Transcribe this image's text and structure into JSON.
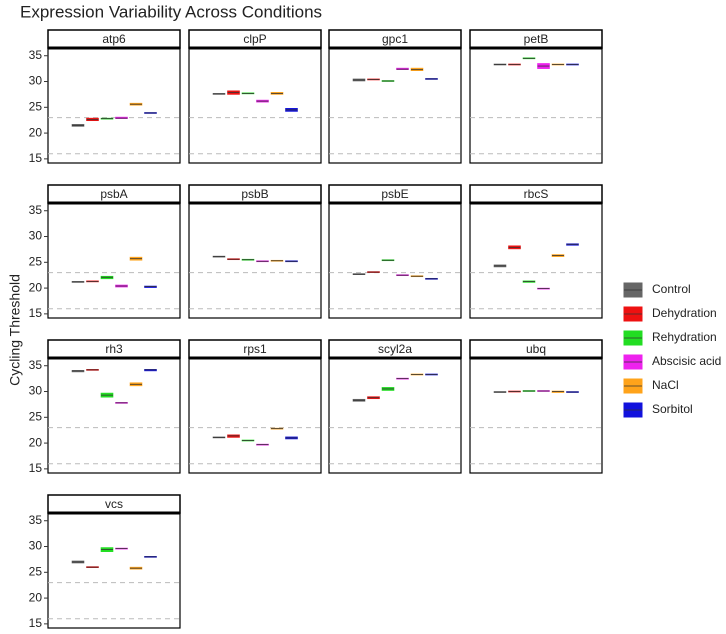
{
  "chart_data": {
    "type": "box",
    "title": "Expression Variability Across Conditions",
    "y_label": "Cycling Threshold",
    "ylim": [
      14.2,
      36.5
    ],
    "yticks": [
      15,
      20,
      25,
      30,
      35
    ],
    "hlines": [
      23,
      16
    ],
    "series": [
      {
        "name": "Control",
        "color": "#666666"
      },
      {
        "name": "Dehydration",
        "color": "#ee1111"
      },
      {
        "name": "Rehydration",
        "color": "#22dd22"
      },
      {
        "name": "Abscisic acid",
        "color": "#ee22ee"
      },
      {
        "name": "NaCl",
        "color": "#ffa31a"
      },
      {
        "name": "Sorbitol",
        "color": "#1111dd"
      }
    ],
    "facets": [
      {
        "name": "atp6",
        "boxes": [
          [
            21.3,
            21.5,
            21.7
          ],
          [
            22.4,
            22.6,
            22.9
          ],
          [
            22.7,
            22.8,
            22.9
          ],
          [
            22.8,
            22.9,
            23.1
          ],
          [
            25.4,
            25.6,
            25.8
          ],
          [
            23.8,
            23.9,
            24.0
          ]
        ]
      },
      {
        "name": "clpP",
        "boxes": [
          [
            27.5,
            27.6,
            27.7
          ],
          [
            27.5,
            27.9,
            28.2
          ],
          [
            27.6,
            27.7,
            27.8
          ],
          [
            26.0,
            26.2,
            26.4
          ],
          [
            27.5,
            27.7,
            27.9
          ],
          [
            24.2,
            24.5,
            24.8
          ]
        ]
      },
      {
        "name": "gpc1",
        "boxes": [
          [
            30.1,
            30.3,
            30.5
          ],
          [
            30.3,
            30.4,
            30.5
          ],
          [
            30.0,
            30.1,
            30.2
          ],
          [
            32.3,
            32.4,
            32.6
          ],
          [
            32.1,
            32.3,
            32.6
          ],
          [
            30.4,
            30.5,
            30.6
          ]
        ]
      },
      {
        "name": "petB",
        "boxes": [
          [
            33.2,
            33.3,
            33.4
          ],
          [
            33.2,
            33.3,
            33.4
          ],
          [
            34.4,
            34.5,
            34.6
          ],
          [
            32.5,
            33.0,
            33.5
          ],
          [
            33.2,
            33.3,
            33.4
          ],
          [
            33.2,
            33.3,
            33.4
          ]
        ]
      },
      {
        "name": "psbA",
        "boxes": [
          [
            21.1,
            21.2,
            21.3
          ],
          [
            21.2,
            21.3,
            21.4
          ],
          [
            21.8,
            22.1,
            22.3
          ],
          [
            20.2,
            20.4,
            20.6
          ],
          [
            25.4,
            25.7,
            26.0
          ],
          [
            20.1,
            20.3,
            20.4
          ]
        ]
      },
      {
        "name": "psbB",
        "boxes": [
          [
            26.0,
            26.1,
            26.2
          ],
          [
            25.5,
            25.6,
            25.7
          ],
          [
            25.4,
            25.5,
            25.6
          ],
          [
            25.1,
            25.2,
            25.3
          ],
          [
            25.2,
            25.3,
            25.4
          ],
          [
            25.1,
            25.2,
            25.3
          ]
        ]
      },
      {
        "name": "psbE",
        "boxes": [
          [
            22.6,
            22.7,
            22.8
          ],
          [
            23.0,
            23.1,
            23.2
          ],
          [
            25.3,
            25.4,
            25.5
          ],
          [
            22.4,
            22.5,
            22.6
          ],
          [
            22.2,
            22.3,
            22.4
          ],
          [
            21.7,
            21.8,
            21.9
          ]
        ]
      },
      {
        "name": "rbcS",
        "boxes": [
          [
            24.1,
            24.3,
            24.5
          ],
          [
            27.6,
            27.9,
            28.2
          ],
          [
            21.1,
            21.3,
            21.4
          ],
          [
            19.8,
            19.9,
            20.0
          ],
          [
            26.1,
            26.3,
            26.5
          ],
          [
            28.3,
            28.5,
            28.6
          ]
        ]
      },
      {
        "name": "rh3",
        "boxes": [
          [
            33.8,
            34.0,
            34.1
          ],
          [
            34.1,
            34.2,
            34.3
          ],
          [
            28.9,
            29.3,
            29.7
          ],
          [
            27.7,
            27.8,
            27.9
          ],
          [
            31.1,
            31.4,
            31.7
          ],
          [
            34.0,
            34.2,
            34.3
          ]
        ]
      },
      {
        "name": "rps1",
        "boxes": [
          [
            21.0,
            21.1,
            21.2
          ],
          [
            21.1,
            21.4,
            21.6
          ],
          [
            20.4,
            20.5,
            20.6
          ],
          [
            19.6,
            19.7,
            19.8
          ],
          [
            22.7,
            22.8,
            22.9
          ],
          [
            20.8,
            21.0,
            21.2
          ]
        ]
      },
      {
        "name": "scyl2a",
        "boxes": [
          [
            28.1,
            28.3,
            28.5
          ],
          [
            28.6,
            28.8,
            29.0
          ],
          [
            30.2,
            30.5,
            30.8
          ],
          [
            32.4,
            32.5,
            32.6
          ],
          [
            33.2,
            33.3,
            33.4
          ],
          [
            33.2,
            33.3,
            33.4
          ]
        ]
      },
      {
        "name": "ubq",
        "boxes": [
          [
            29.8,
            29.9,
            30.0
          ],
          [
            29.9,
            30.0,
            30.1
          ],
          [
            30.0,
            30.1,
            30.2
          ],
          [
            30.0,
            30.1,
            30.2
          ],
          [
            29.8,
            30.0,
            30.1
          ],
          [
            29.8,
            29.9,
            30.0
          ]
        ]
      },
      {
        "name": "vcs",
        "boxes": [
          [
            26.8,
            27.0,
            27.2
          ],
          [
            25.9,
            26.0,
            26.1
          ],
          [
            29.0,
            29.4,
            29.8
          ],
          [
            29.5,
            29.6,
            29.7
          ],
          [
            25.6,
            25.8,
            26.0
          ],
          [
            27.9,
            28.0,
            28.1
          ]
        ]
      }
    ]
  }
}
